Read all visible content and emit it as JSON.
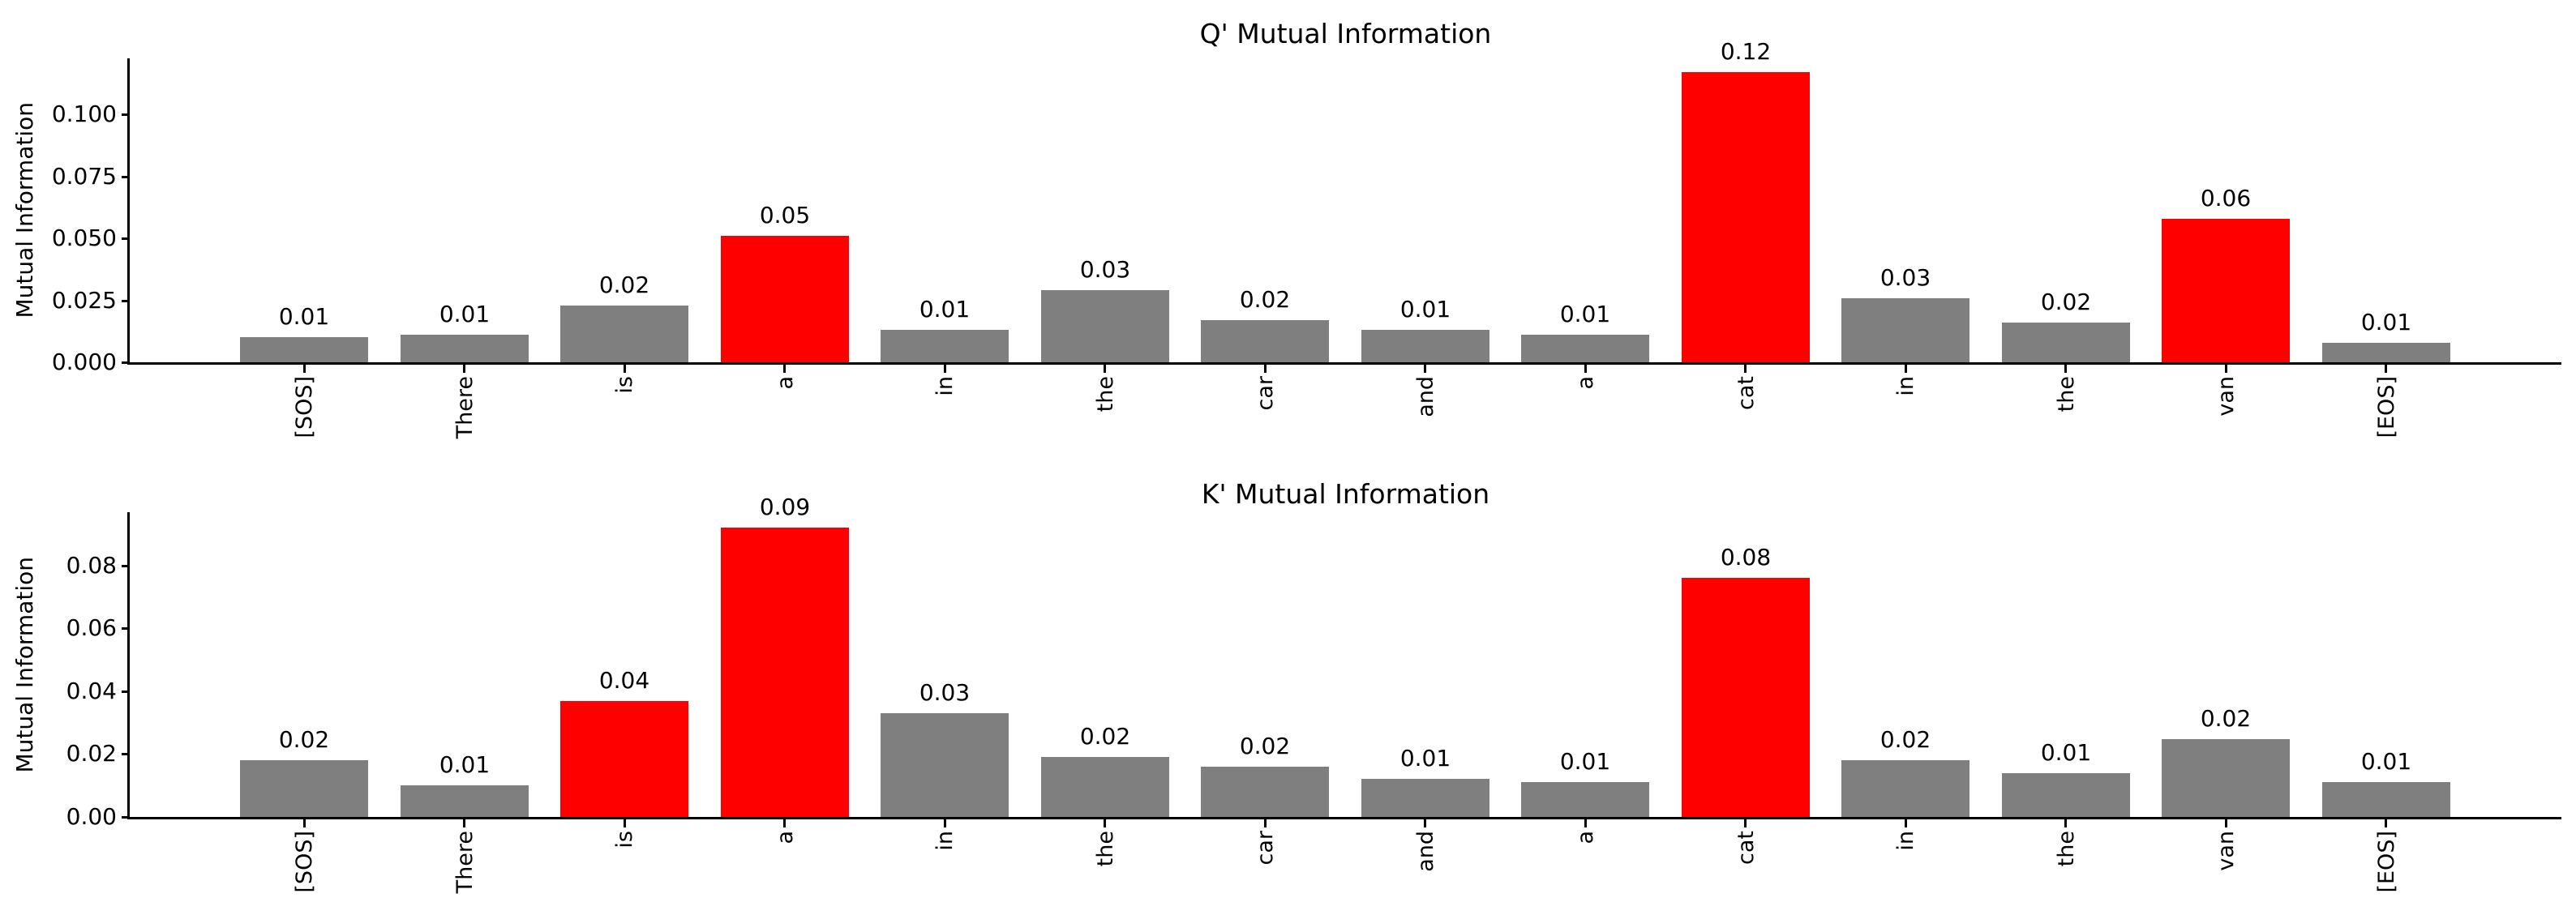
{
  "colors": {
    "bar_gray": "#7f7f7f",
    "bar_highlight": "#ff0000",
    "axis": "#000000",
    "text": "#000000",
    "background": "#ffffff"
  },
  "chart_data": [
    {
      "type": "bar",
      "title": "Q' Mutual Information",
      "xlabel": "",
      "ylabel": "Mutual Information",
      "grid": false,
      "categories": [
        "[SOS]",
        "There",
        "is",
        "a",
        "in",
        "the",
        "car",
        "and",
        "a",
        "cat",
        "in",
        "the",
        "van",
        "[EOS]"
      ],
      "values": [
        0.01,
        0.011,
        0.023,
        0.051,
        0.013,
        0.029,
        0.017,
        0.013,
        0.011,
        0.117,
        0.026,
        0.016,
        0.058,
        0.008
      ],
      "value_labels": [
        "0.01",
        "0.01",
        "0.02",
        "0.05",
        "0.01",
        "0.03",
        "0.02",
        "0.01",
        "0.01",
        "0.12",
        "0.03",
        "0.02",
        "0.06",
        "0.01"
      ],
      "bar_colors": [
        "#7f7f7f",
        "#7f7f7f",
        "#7f7f7f",
        "#ff0000",
        "#7f7f7f",
        "#7f7f7f",
        "#7f7f7f",
        "#7f7f7f",
        "#7f7f7f",
        "#ff0000",
        "#7f7f7f",
        "#7f7f7f",
        "#ff0000",
        "#7f7f7f"
      ],
      "highlight_indices": [
        3,
        9,
        12
      ],
      "ytick_labels": [
        "0.000",
        "0.025",
        "0.050",
        "0.075",
        "0.100"
      ],
      "ytick_values": [
        0,
        0.025,
        0.05,
        0.075,
        0.1
      ],
      "ylim": [
        0,
        0.1227
      ]
    },
    {
      "type": "bar",
      "title": "K' Mutual Information",
      "xlabel": "",
      "ylabel": "Mutual Information",
      "grid": false,
      "categories": [
        "[SOS]",
        "There",
        "is",
        "a",
        "in",
        "the",
        "car",
        "and",
        "a",
        "cat",
        "in",
        "the",
        "van",
        "[EOS]"
      ],
      "values": [
        0.018,
        0.01,
        0.037,
        0.092,
        0.033,
        0.019,
        0.016,
        0.012,
        0.011,
        0.076,
        0.018,
        0.014,
        0.0248,
        0.011
      ],
      "value_labels": [
        "0.02",
        "0.01",
        "0.04",
        "0.09",
        "0.03",
        "0.02",
        "0.02",
        "0.01",
        "0.01",
        "0.08",
        "0.02",
        "0.01",
        "0.02",
        "0.01"
      ],
      "bar_colors": [
        "#7f7f7f",
        "#7f7f7f",
        "#ff0000",
        "#ff0000",
        "#7f7f7f",
        "#7f7f7f",
        "#7f7f7f",
        "#7f7f7f",
        "#7f7f7f",
        "#ff0000",
        "#7f7f7f",
        "#7f7f7f",
        "#7f7f7f",
        "#7f7f7f"
      ],
      "highlight_indices": [
        2,
        3,
        9
      ],
      "ytick_labels": [
        "0.00",
        "0.02",
        "0.04",
        "0.06",
        "0.08"
      ],
      "ytick_values": [
        0,
        0.02,
        0.04,
        0.06,
        0.08
      ],
      "ylim": [
        0,
        0.097
      ]
    }
  ]
}
